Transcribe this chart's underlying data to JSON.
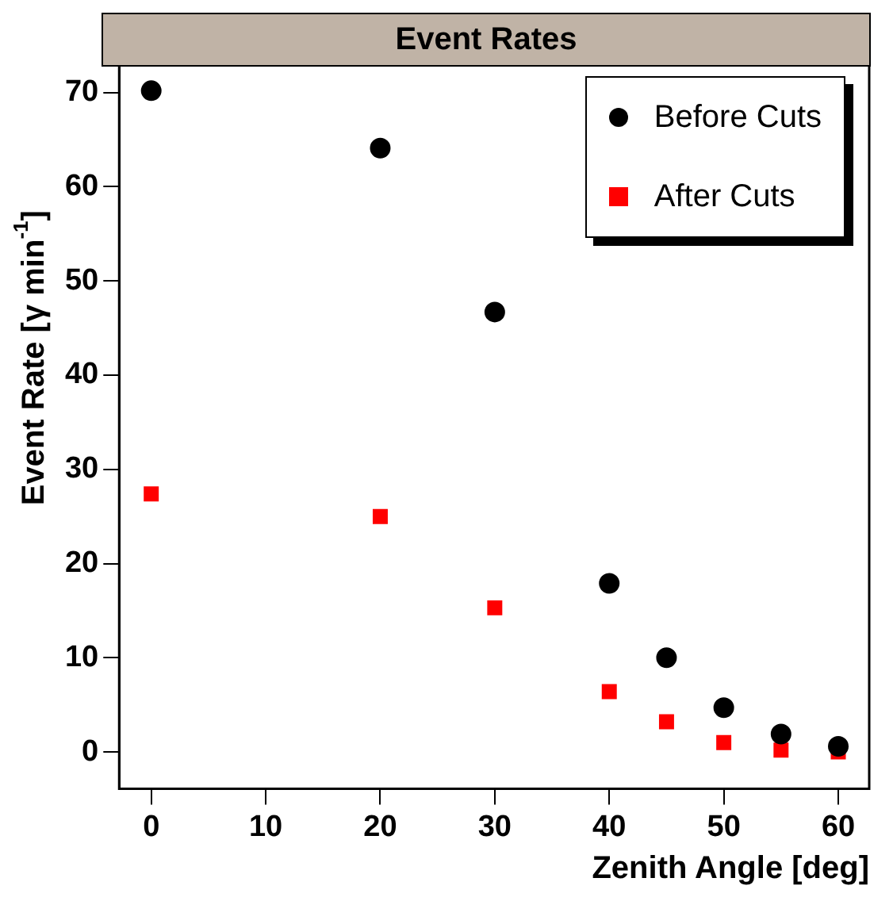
{
  "chart_data": {
    "type": "scatter",
    "title": "Event Rates",
    "xlabel": "Zenith Angle [deg]",
    "ylabel": "Event Rate [γ min$^{-1}$]",
    "x": [
      0,
      20,
      30,
      40,
      45,
      50,
      55,
      60
    ],
    "series": [
      {
        "name": "Before Cuts",
        "color": "#000000",
        "marker": "circle",
        "values": [
          70.2,
          64.1,
          46.7,
          17.9,
          10.0,
          4.7,
          1.9,
          0.6
        ]
      },
      {
        "name": "After Cuts",
        "color": "#ff0000",
        "marker": "square",
        "values": [
          27.4,
          25.0,
          15.3,
          6.4,
          3.2,
          1.0,
          0.2,
          0.0
        ]
      }
    ],
    "xlim": [
      -2.8,
      62.7
    ],
    "xticks": [
      0,
      10,
      20,
      30,
      40,
      50,
      60
    ],
    "ylim": [
      -3.9,
      74.1
    ],
    "yticks": [
      0,
      10,
      20,
      30,
      40,
      50,
      60,
      70
    ],
    "grid": false,
    "legend": "top right"
  }
}
